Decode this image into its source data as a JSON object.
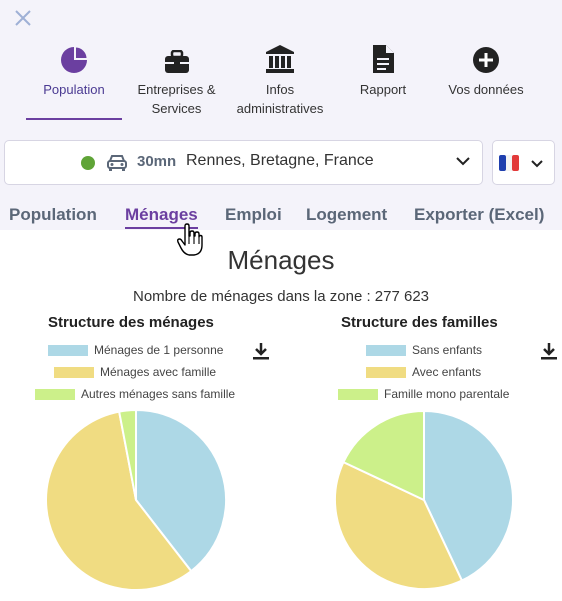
{
  "header": {
    "nav": [
      {
        "label": "Population",
        "icon": "pie-chart-icon",
        "active": true
      },
      {
        "label": "Entreprises & Services",
        "icon": "briefcase-icon",
        "active": false
      },
      {
        "label": "Infos administratives",
        "icon": "bank-building-icon",
        "active": false
      },
      {
        "label": "Rapport",
        "icon": "document-icon",
        "active": false
      },
      {
        "label": "Vos données",
        "icon": "plus-circle-icon",
        "active": false
      }
    ]
  },
  "location": {
    "duration": "30mn",
    "place": "Rennes, Bretagne, France",
    "mode_icon": "car-icon",
    "status_color": "#5fa437"
  },
  "tabs": [
    {
      "label": "Population",
      "active": false
    },
    {
      "label": "Ménages",
      "active": true
    },
    {
      "label": "Emploi",
      "active": false
    },
    {
      "label": "Logement",
      "active": false
    },
    {
      "label": "Exporter (Excel)",
      "active": false
    }
  ],
  "page": {
    "title": "Ménages",
    "count_text": "Nombre de ménages dans la zone : 277 623"
  },
  "colors": {
    "accent": "#6b3fa0",
    "blue": "#add8e6",
    "yellow": "#f0dc82",
    "green": "#ccf08a"
  },
  "chart_data": [
    {
      "type": "pie",
      "title": "Structure des ménages",
      "labels": [
        "Ménages de 1 personne",
        "Ménages avec famille",
        "Autres ménages sans famille"
      ],
      "values": [
        39.5,
        57.5,
        3.0
      ],
      "colors": [
        "#add8e6",
        "#f0dc82",
        "#ccf08a"
      ]
    },
    {
      "type": "pie",
      "title": "Structure des familles",
      "labels": [
        "Sans enfants",
        "Avec enfants",
        "Famille mono parentale"
      ],
      "values": [
        43.0,
        39.0,
        18.0
      ],
      "colors": [
        "#add8e6",
        "#f0dc82",
        "#ccf08a"
      ]
    }
  ]
}
